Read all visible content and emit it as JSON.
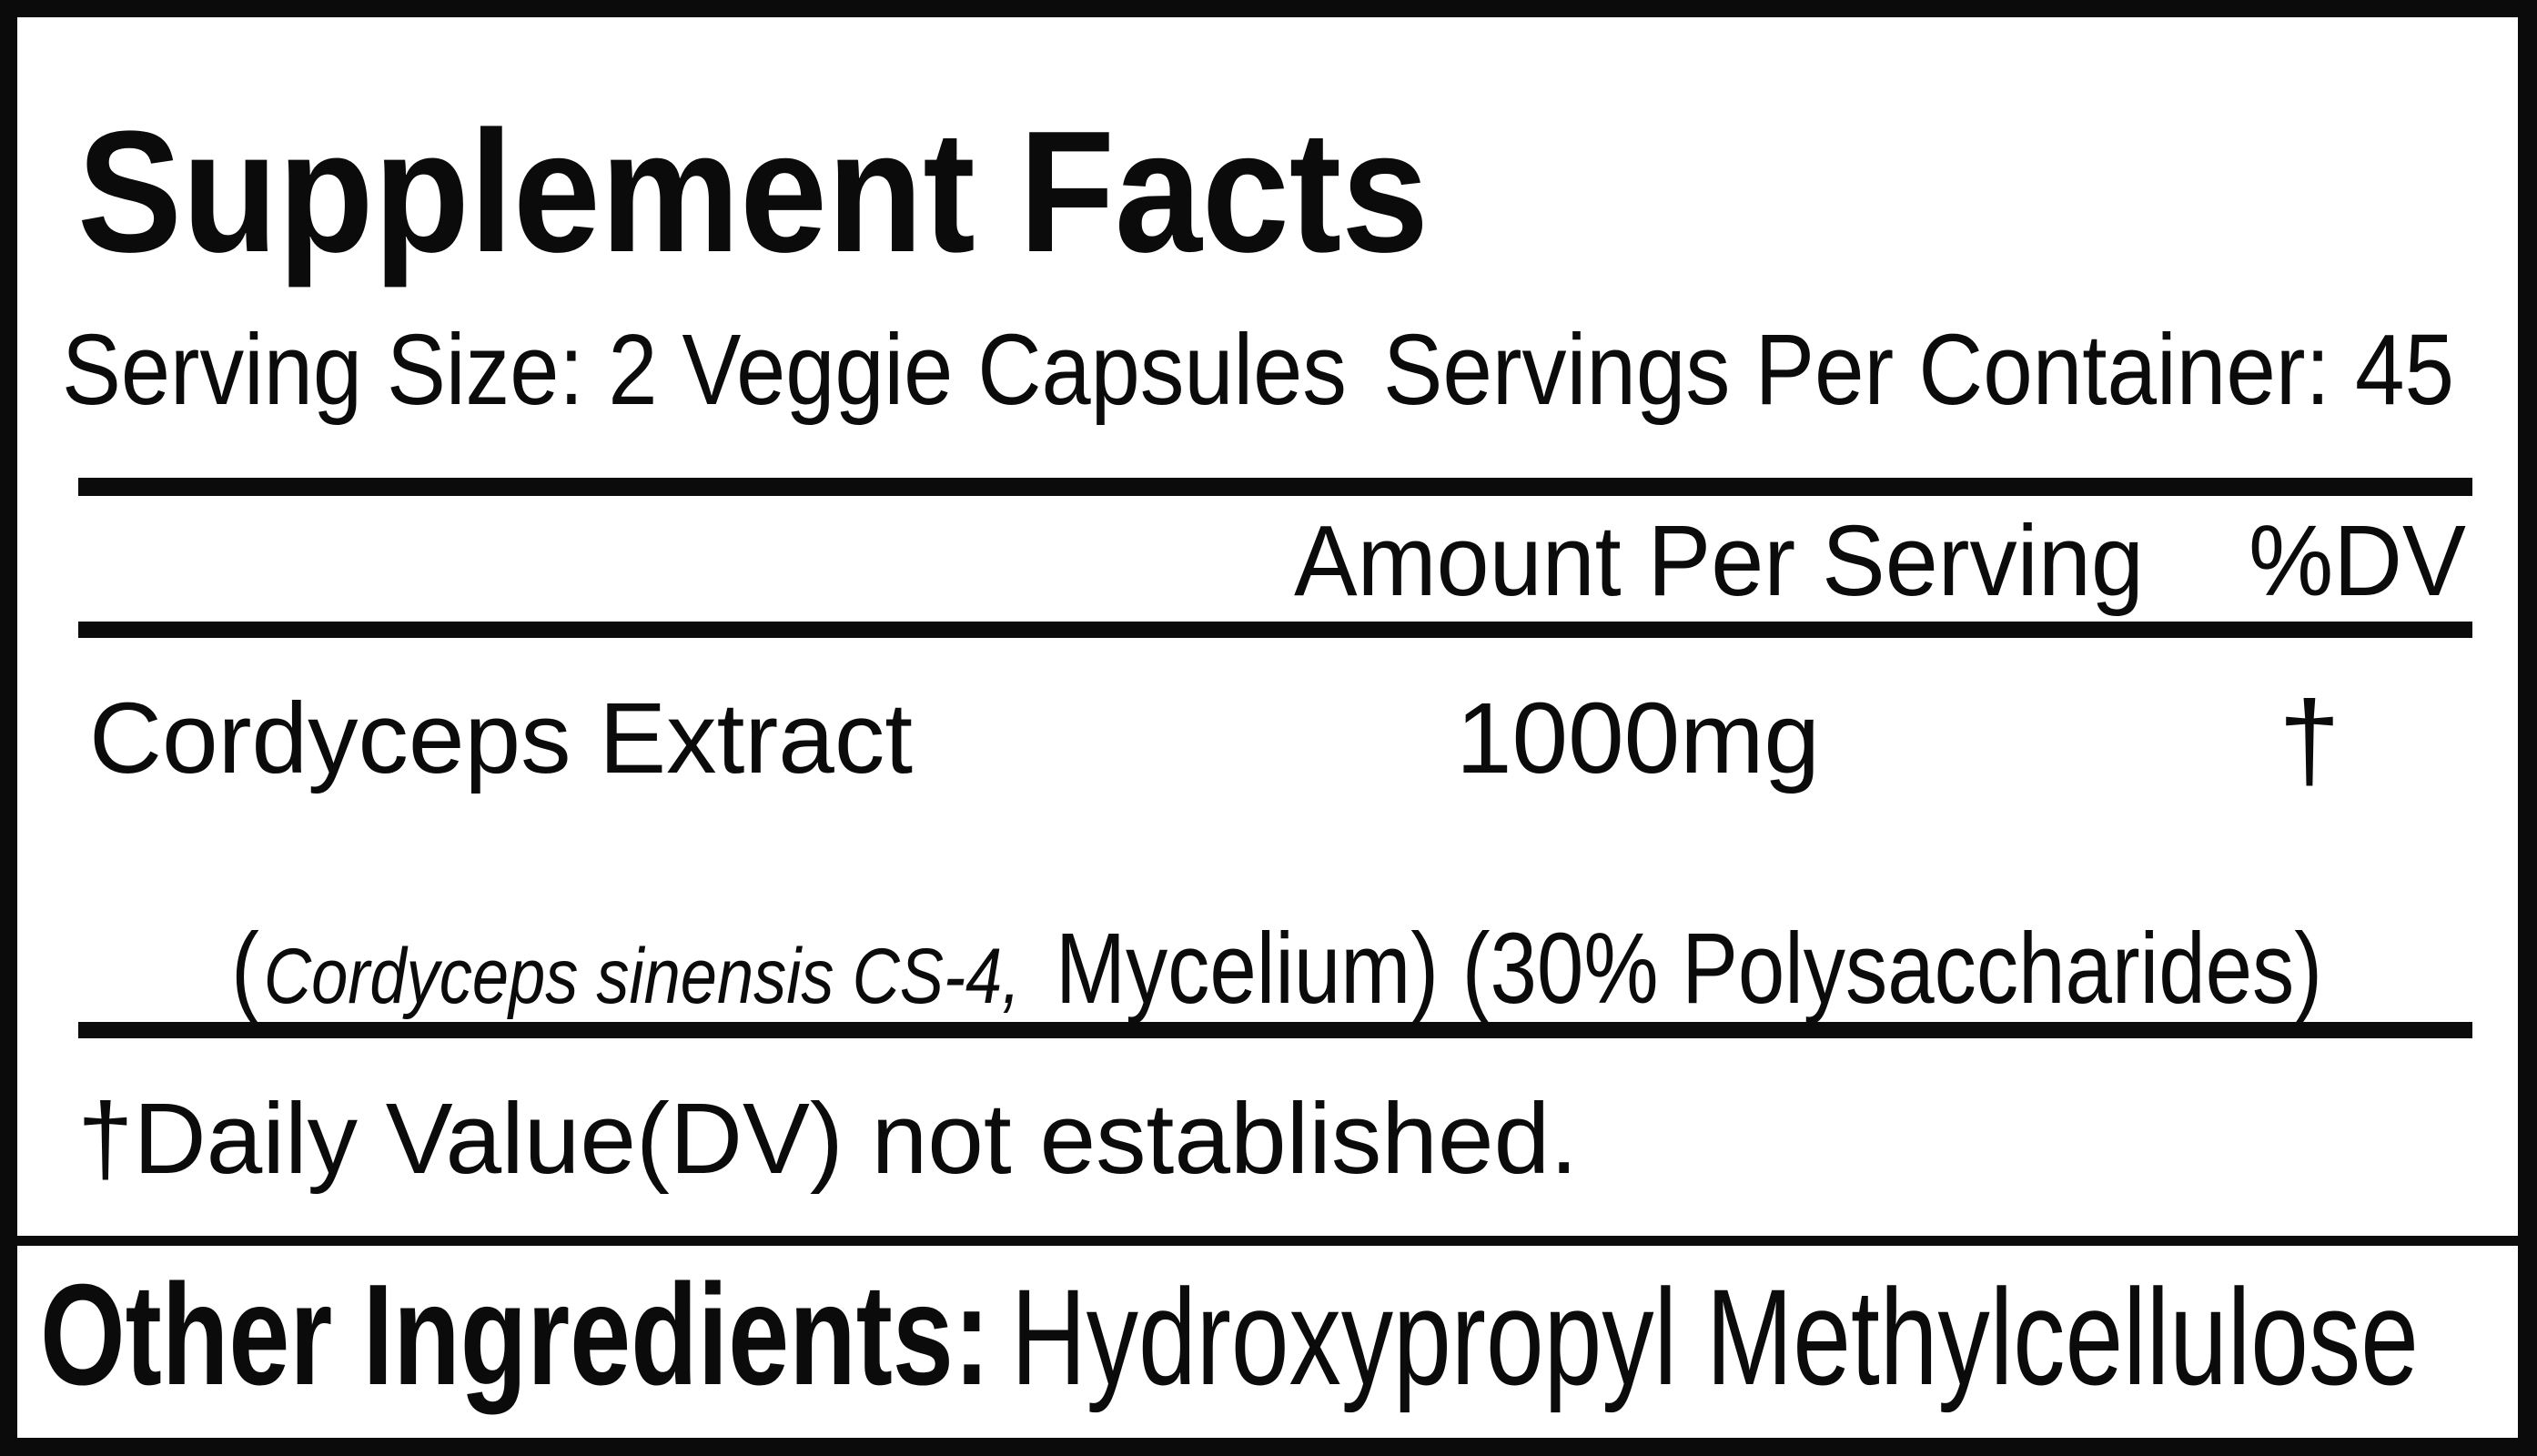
{
  "label": {
    "title": "Supplement Facts",
    "serving": {
      "size": "Serving Size: 2 Veggie Capsules",
      "per_container": "Servings Per Container: 45"
    },
    "columns": {
      "amount": "Amount Per Serving",
      "dv": "%DV"
    },
    "ingredient": {
      "name": "Cordyceps Extract",
      "amount": "1000mg",
      "dv": "†",
      "detail_prefix": "(",
      "detail_italic": "Cordyceps sinensis CS-4,",
      "detail_rest": "Mycelium) (30% Polysaccharides)"
    },
    "footnote": "†Daily Value(DV) not established.",
    "other": {
      "label": "Other Ingredients:",
      "value": "Hydroxypropyl Methylcellulose"
    },
    "colors": {
      "ink": "#0b0b0b",
      "paper": "#ffffff"
    }
  }
}
